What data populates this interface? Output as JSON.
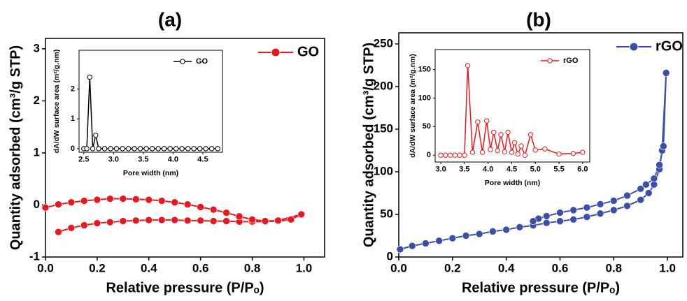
{
  "chart_data": [
    {
      "type": "line",
      "title": "(a)",
      "x_label": "Relative pressure (P/Pₒ)",
      "y_label": "Quantity adsorbed (cm³/g STP)",
      "xlim": [
        0,
        1.08
      ],
      "ylim": [
        -1,
        3.2
      ],
      "xticks": [
        {
          "value": 0,
          "label": "0.0"
        },
        {
          "value": 0.2,
          "label": "0.2"
        },
        {
          "value": 0.4,
          "label": "0.4"
        },
        {
          "value": 0.6,
          "label": "0.6"
        },
        {
          "value": 0.8,
          "label": "0.8"
        },
        {
          "value": 1,
          "label": "1.0"
        }
      ],
      "yticks": [
        -1,
        0,
        1,
        2,
        3
      ],
      "legend": "upper right",
      "series": [
        {
          "name": "GO",
          "color": "#e8191e",
          "x": [
            0.05,
            0.1,
            0.15,
            0.2,
            0.25,
            0.3,
            0.35,
            0.4,
            0.45,
            0.5,
            0.55,
            0.6,
            0.65,
            0.7,
            0.75,
            0.8,
            0.85,
            0.9,
            0.95,
            0.99,
            0.9,
            0.85,
            0.8,
            0.75,
            0.7,
            0.65,
            0.6,
            0.55,
            0.5,
            0.45,
            0.4,
            0.35,
            0.3,
            0.25,
            0.2,
            0.15,
            0.1,
            0.05,
            0.0
          ],
          "values": [
            -0.52,
            -0.44,
            -0.39,
            -0.35,
            -0.33,
            -0.31,
            -0.3,
            -0.29,
            -0.29,
            -0.29,
            -0.3,
            -0.3,
            -0.31,
            -0.31,
            -0.32,
            -0.32,
            -0.32,
            -0.31,
            -0.28,
            -0.18,
            -0.3,
            -0.31,
            -0.28,
            -0.22,
            -0.15,
            -0.09,
            -0.04,
            0.01,
            0.05,
            0.08,
            0.1,
            0.11,
            0.12,
            0.12,
            0.1,
            0.08,
            0.05,
            0.01,
            -0.05
          ]
        }
      ],
      "inset": {
        "type": "line",
        "x_label": "Pore width (nm)",
        "y_label": "dA/dW surface area (m²/g.nm)",
        "xlim": [
          2.42,
          4.83
        ],
        "ylim": [
          -0.12,
          3.3
        ],
        "xticks": [
          {
            "value": 2.5,
            "label": "2.5"
          },
          {
            "value": 3,
            "label": "3.0"
          },
          {
            "value": 3.5,
            "label": "3.5"
          },
          {
            "value": 4,
            "label": "4.0"
          },
          {
            "value": 4.5,
            "label": "4.5"
          }
        ],
        "yticks": [
          0,
          1,
          2
        ],
        "legend": "upper right",
        "series": [
          {
            "name": "GO",
            "color": "#000000",
            "x": [
              2.5,
              2.55,
              2.6,
              2.65,
              2.7,
              2.75,
              2.85,
              2.95,
              3.05,
              3.15,
              3.25,
              3.35,
              3.45,
              3.55,
              3.65,
              3.75,
              3.85,
              3.95,
              4.05,
              4.15,
              4.25,
              4.35,
              4.45,
              4.55,
              4.65,
              4.75
            ],
            "values": [
              0,
              0,
              2.4,
              0,
              0.45,
              0,
              0,
              0,
              0,
              0,
              0,
              0,
              0,
              0,
              0,
              0,
              0,
              0,
              0,
              0,
              0,
              0,
              0,
              0,
              0,
              0
            ]
          }
        ]
      }
    },
    {
      "type": "line",
      "title": "(b)",
      "x_label": "Relative pressure (P/Pₒ)",
      "y_label": "Quantity adsorbed (cm³/g STP)",
      "xlim": [
        0,
        1.057
      ],
      "ylim": [
        0,
        263
      ],
      "xticks": [
        {
          "value": 0,
          "label": "0.0"
        },
        {
          "value": 0.2,
          "label": "0.2"
        },
        {
          "value": 0.4,
          "label": "0.4"
        },
        {
          "value": 0.6,
          "label": "0.6"
        },
        {
          "value": 0.8,
          "label": "0.8"
        },
        {
          "value": 1,
          "label": "1.0"
        }
      ],
      "yticks": [
        0,
        50,
        100,
        150,
        200,
        250
      ],
      "legend": "upper right",
      "series": [
        {
          "name": "rGO",
          "color": "#3a4fa8",
          "x": [
            0.005,
            0.05,
            0.1,
            0.15,
            0.2,
            0.25,
            0.3,
            0.35,
            0.4,
            0.45,
            0.5,
            0.55,
            0.6,
            0.65,
            0.7,
            0.75,
            0.8,
            0.85,
            0.9,
            0.93,
            0.95,
            0.97,
            0.98,
            0.995,
            0.985,
            0.97,
            0.95,
            0.92,
            0.9,
            0.85,
            0.8,
            0.75,
            0.7,
            0.65,
            0.6,
            0.55,
            0.52,
            0.5
          ],
          "values": [
            9,
            13,
            16,
            19,
            22,
            25,
            27,
            30,
            32,
            35,
            37,
            40,
            42,
            44,
            47,
            51,
            55,
            60,
            67,
            75,
            85,
            103,
            125,
            216,
            130,
            108,
            92,
            85,
            80,
            72,
            66,
            62,
            58,
            55,
            52,
            48,
            45,
            42
          ]
        }
      ],
      "inset": {
        "type": "line",
        "x_label": "Pore width (nm)",
        "y_label": "dA/dW surface area (m²/g.nm)",
        "xlim": [
          2.88,
          6.15
        ],
        "ylim": [
          -12,
          185
        ],
        "xticks": [
          {
            "value": 3,
            "label": "3.0"
          },
          {
            "value": 3.5,
            "label": "3.5"
          },
          {
            "value": 4,
            "label": "4.0"
          },
          {
            "value": 4.5,
            "label": "4.5"
          },
          {
            "value": 5,
            "label": "5.0"
          },
          {
            "value": 5.5,
            "label": "5.5"
          },
          {
            "value": 6,
            "label": "6.0"
          }
        ],
        "yticks": [
          0,
          50,
          100,
          150
        ],
        "legend": "upper right",
        "series": [
          {
            "name": "rGO",
            "color": "#e8191e",
            "x": [
              3.0,
              3.1,
              3.2,
              3.3,
              3.4,
              3.5,
              3.57,
              3.67,
              3.78,
              3.88,
              3.97,
              4.05,
              4.12,
              4.2,
              4.27,
              4.35,
              4.42,
              4.5,
              4.56,
              4.63,
              4.7,
              4.78,
              4.9,
              5.0,
              5.2,
              5.5,
              5.8,
              6.0
            ],
            "values": [
              0,
              0,
              0,
              0,
              0,
              0,
              157,
              5,
              58,
              5,
              60,
              10,
              40,
              8,
              36,
              6,
              40,
              5,
              22,
              2,
              16,
              0,
              36,
              9,
              11,
              2,
              3,
              5
            ]
          }
        ]
      }
    }
  ]
}
